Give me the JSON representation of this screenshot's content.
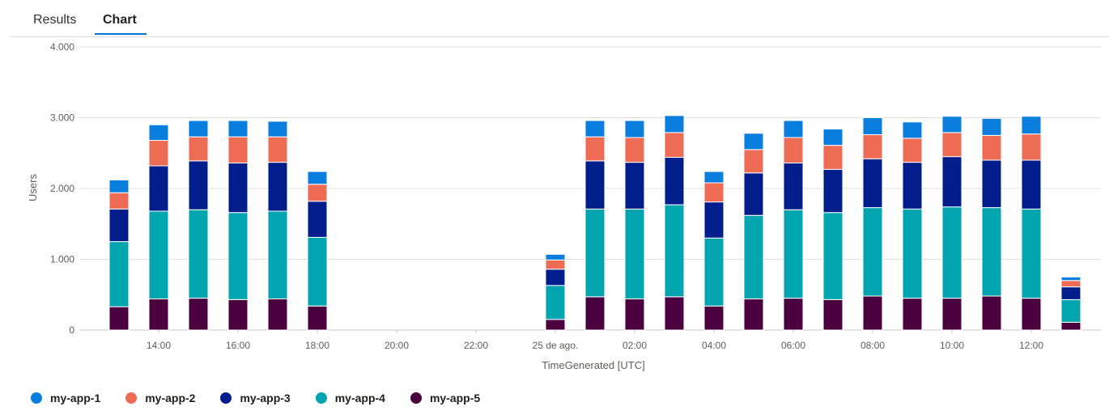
{
  "tabs": [
    {
      "label": "Results",
      "active": false
    },
    {
      "label": "Chart",
      "active": true
    }
  ],
  "chart_data": {
    "type": "bar",
    "stacked": true,
    "xlabel": "TimeGenerated [UTC]",
    "ylabel": "Users",
    "ylim": [
      0,
      4000
    ],
    "yticks": [
      "0",
      "1.000",
      "2.000",
      "3.000",
      "4.000"
    ],
    "xtick_labels": [
      "14:00",
      "16:00",
      "18:00",
      "20:00",
      "22:00",
      "25 de ago.",
      "02:00",
      "04:00",
      "06:00",
      "08:00",
      "10:00",
      "12:00"
    ],
    "grid": true,
    "legend_position": "bottom-left",
    "x": [
      "13:00",
      "14:00",
      "15:00",
      "16:00",
      "17:00",
      "18:00",
      "19:00",
      "20:00",
      "21:00",
      "22:00",
      "23:00",
      "00:00",
      "01:00",
      "02:00",
      "03:00",
      "04:00",
      "05:00",
      "06:00",
      "07:00",
      "08:00",
      "09:00",
      "10:00",
      "11:00",
      "12:00",
      "13:00"
    ],
    "series": [
      {
        "name": "my-app-5",
        "color": "#4b003f",
        "values": [
          330,
          440,
          450,
          430,
          440,
          340,
          0,
          0,
          0,
          0,
          0,
          150,
          470,
          440,
          470,
          340,
          440,
          450,
          430,
          480,
          450,
          450,
          480,
          450,
          110
        ]
      },
      {
        "name": "my-app-4",
        "color": "#00a5b0",
        "values": [
          920,
          1240,
          1250,
          1230,
          1240,
          970,
          0,
          0,
          0,
          0,
          0,
          480,
          1240,
          1270,
          1300,
          960,
          1180,
          1250,
          1230,
          1250,
          1260,
          1290,
          1250,
          1260,
          320
        ]
      },
      {
        "name": "my-app-3",
        "color": "#001d8c",
        "values": [
          460,
          640,
          690,
          700,
          690,
          510,
          0,
          0,
          0,
          0,
          0,
          230,
          680,
          660,
          670,
          510,
          600,
          660,
          610,
          690,
          660,
          710,
          670,
          690,
          180
        ]
      },
      {
        "name": "my-app-2",
        "color": "#ee6b54",
        "values": [
          230,
          360,
          340,
          370,
          360,
          240,
          0,
          0,
          0,
          0,
          0,
          130,
          340,
          350,
          350,
          270,
          330,
          360,
          340,
          340,
          340,
          340,
          350,
          370,
          90
        ]
      },
      {
        "name": "my-app-1",
        "color": "#0a7ede",
        "values": [
          180,
          220,
          230,
          230,
          220,
          180,
          0,
          0,
          0,
          0,
          0,
          80,
          230,
          240,
          240,
          160,
          230,
          240,
          230,
          240,
          230,
          230,
          240,
          250,
          50
        ]
      }
    ]
  },
  "legend": [
    {
      "label": "my-app-1",
      "color": "#0a7ede"
    },
    {
      "label": "my-app-2",
      "color": "#ee6b54"
    },
    {
      "label": "my-app-3",
      "color": "#001d8c"
    },
    {
      "label": "my-app-4",
      "color": "#00a5b0"
    },
    {
      "label": "my-app-5",
      "color": "#4b003f"
    }
  ]
}
